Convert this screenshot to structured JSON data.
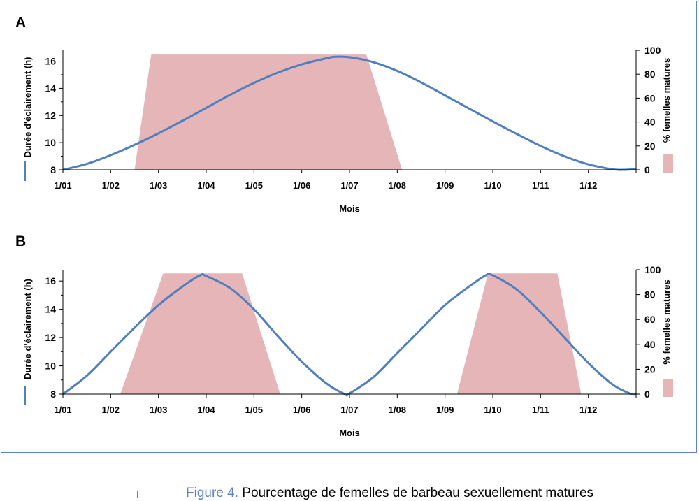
{
  "caption": {
    "figure_number": "Figure 4.",
    "text": "Pourcentage de femelles de barbeau sexuellement matures"
  },
  "chart_data": [
    {
      "panel_label": "A",
      "type": "line+area",
      "xlabel": "Mois",
      "ylabel_left": "Durée d'éclairement (h)",
      "ylabel_right": "% femelles matures",
      "x_ticks": [
        "1/01",
        "1/02",
        "1/03",
        "1/04",
        "1/05",
        "1/06",
        "1/07",
        "1/08",
        "1/09",
        "1/10",
        "1/11",
        "1/12"
      ],
      "x_range": [
        0,
        12
      ],
      "ylim_left": [
        8,
        16.8
      ],
      "y_ticks_left": [
        "8",
        "10",
        "12",
        "14",
        "16"
      ],
      "ylim_right": [
        0,
        100
      ],
      "y_ticks_right": [
        "0",
        "20",
        "40",
        "60",
        "80",
        "100"
      ],
      "grid": false,
      "legend": "left and right axis labels with colored markers",
      "series": [
        {
          "kind": "line",
          "axis": "left",
          "color": "#4f7fc0",
          "points": [
            [
              0,
              8.0
            ],
            [
              0.5,
              8.43
            ],
            [
              1,
              9.08
            ],
            [
              1.5,
              9.84
            ],
            [
              2,
              10.68
            ],
            [
              2.5,
              11.6
            ],
            [
              3,
              12.56
            ],
            [
              3.5,
              13.52
            ],
            [
              4,
              14.4
            ],
            [
              4.5,
              15.16
            ],
            [
              5,
              15.76
            ],
            [
              5.5,
              16.2
            ],
            [
              5.7,
              16.32
            ],
            [
              6,
              16.29
            ],
            [
              6.5,
              15.92
            ],
            [
              7,
              15.28
            ],
            [
              7.5,
              14.44
            ],
            [
              8,
              13.48
            ],
            [
              8.5,
              12.52
            ],
            [
              9,
              11.56
            ],
            [
              9.5,
              10.64
            ],
            [
              10,
              9.76
            ],
            [
              10.5,
              9.0
            ],
            [
              11,
              8.4
            ],
            [
              11.5,
              8.04
            ],
            [
              11.75,
              8.0
            ],
            [
              12,
              8.05
            ]
          ]
        },
        {
          "kind": "area",
          "axis": "right",
          "color": "#e5b5b7",
          "points": [
            [
              1.5,
              0
            ],
            [
              1.85,
              97
            ],
            [
              5.15,
              97
            ],
            [
              6.35,
              97
            ],
            [
              7.1,
              0
            ]
          ]
        }
      ]
    },
    {
      "panel_label": "B",
      "type": "line+area",
      "xlabel": "Mois",
      "ylabel_left": "Durée d'éclairement (h)",
      "ylabel_right": "% femelles matures",
      "x_ticks": [
        "1/01",
        "1/02",
        "1/03",
        "1/04",
        "1/05",
        "1/06",
        "1/07",
        "1/08",
        "1/09",
        "1/10",
        "1/11",
        "1/12"
      ],
      "x_range": [
        0,
        12
      ],
      "ylim_left": [
        8,
        16.8
      ],
      "y_ticks_left": [
        "8",
        "10",
        "12",
        "14",
        "16"
      ],
      "ylim_right": [
        0,
        100
      ],
      "y_ticks_right": [
        "0",
        "20",
        "40",
        "60",
        "80",
        "100"
      ],
      "grid": false,
      "legend": "left and right axis labels with colored markers",
      "series": [
        {
          "kind": "line",
          "axis": "left",
          "color": "#4f7fc0",
          "points": [
            [
              0,
              8.0
            ],
            [
              0.5,
              9.3
            ],
            [
              1,
              11.0
            ],
            [
              1.5,
              12.7
            ],
            [
              2,
              14.3
            ],
            [
              2.5,
              15.6
            ],
            [
              2.87,
              16.4
            ],
            [
              3,
              16.35
            ],
            [
              3.5,
              15.5
            ],
            [
              4,
              14.0
            ],
            [
              4.5,
              12.1
            ],
            [
              5,
              10.3
            ],
            [
              5.5,
              8.8
            ],
            [
              5.9,
              8.0
            ],
            [
              6,
              8.05
            ],
            [
              6.5,
              9.2
            ],
            [
              7,
              10.9
            ],
            [
              7.5,
              12.6
            ],
            [
              8,
              14.3
            ],
            [
              8.5,
              15.6
            ],
            [
              8.85,
              16.4
            ],
            [
              9,
              16.4
            ],
            [
              9.5,
              15.4
            ],
            [
              10,
              13.8
            ],
            [
              10.5,
              12.0
            ],
            [
              11,
              10.2
            ],
            [
              11.5,
              8.7
            ],
            [
              11.9,
              8.0
            ],
            [
              12,
              8.05
            ]
          ]
        },
        {
          "kind": "area",
          "axis": "right",
          "color": "#e5b5b7",
          "points": [
            [
              1.2,
              0
            ],
            [
              2.1,
              97
            ],
            [
              3.75,
              97
            ],
            [
              4.55,
              0
            ],
            [
              8.25,
              0
            ],
            [
              8.9,
              97
            ],
            [
              10.35,
              97
            ],
            [
              10.85,
              0
            ]
          ]
        }
      ]
    }
  ]
}
